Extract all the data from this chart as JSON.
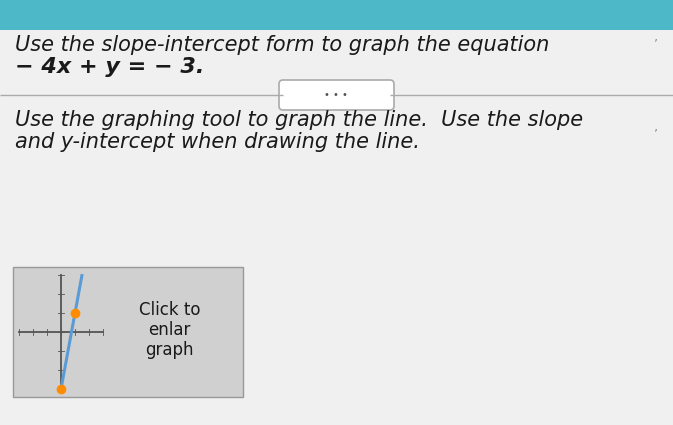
{
  "header_color": "#4db8c8",
  "card_bg": "#f0f0f0",
  "title_line1": "Use the slope-intercept form to graph the equation",
  "title_line2": "− 4x + y = − 3.",
  "body_line1": "Use the graphing tool to graph the line.  Use the slope",
  "body_line2": "and y-intercept when drawing the line.",
  "button_text_line1": "Click to",
  "button_text_line2": "enlar",
  "button_text_line3": "graph",
  "font_size_title": 15,
  "font_size_body": 15,
  "graph_thumbnail": {
    "x_range": [
      -3,
      3
    ],
    "y_range": [
      -3,
      3
    ],
    "slope": 4,
    "y_intercept": -3,
    "line_color": "#5b9bd5",
    "dot_color": "#ff8c00",
    "dot_points": [
      [
        0,
        -3
      ],
      [
        1,
        1
      ]
    ]
  },
  "divider_color": "#aaaaaa",
  "text_color": "#1a1a1a"
}
